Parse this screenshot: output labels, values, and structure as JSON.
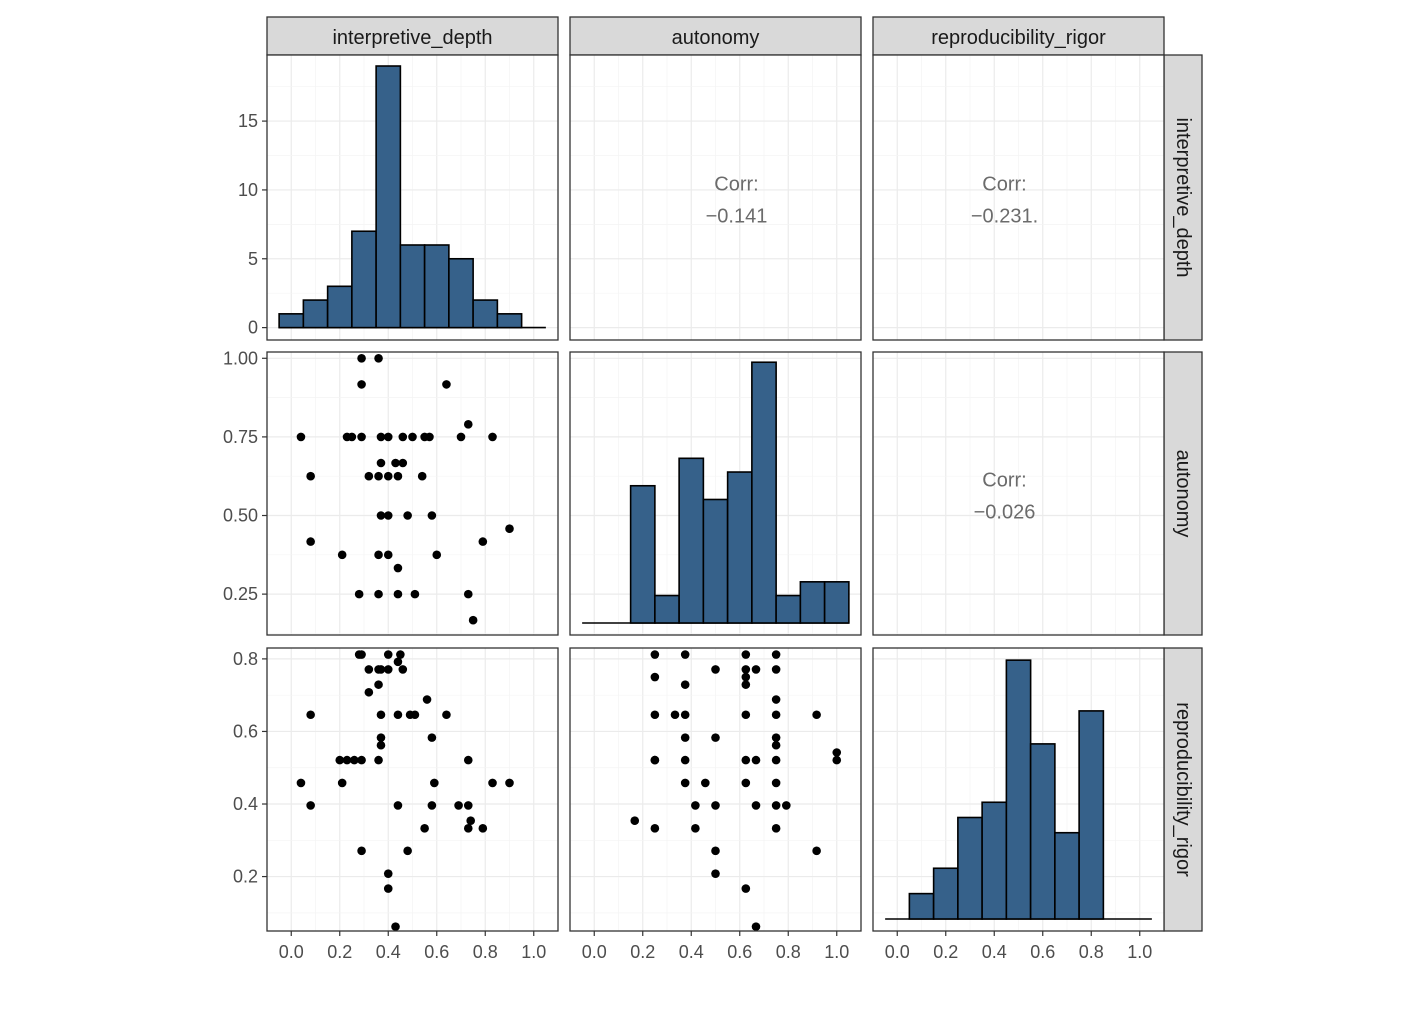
{
  "chart_data": {
    "type": "scatter_matrix",
    "variables": [
      "interpretive_depth",
      "autonomy",
      "reproducibility_rigor"
    ],
    "ranges": {
      "interpretive_depth": [
        -0.05,
        1.05
      ],
      "autonomy": [
        0.12,
        1.02
      ],
      "reproducibility_rigor": [
        0.05,
        0.83
      ]
    },
    "x_breaks": [
      0.0,
      0.2,
      0.4,
      0.6,
      0.8,
      1.0
    ],
    "x_break_labels": [
      "0.0",
      "0.2",
      "0.4",
      "0.6",
      "0.8",
      "1.0"
    ],
    "y_axis": {
      "row0": {
        "range": [
          -0.9,
          19.8
        ],
        "breaks": [
          0,
          5,
          10,
          15
        ],
        "labels": [
          "0",
          "5",
          "10",
          "15"
        ]
      },
      "row1": {
        "breaks": [
          0.25,
          0.5,
          0.75,
          1.0
        ],
        "labels": [
          "0.25",
          "0.50",
          "0.75",
          "1.00"
        ]
      },
      "row2": {
        "breaks": [
          0.2,
          0.4,
          0.6,
          0.8
        ],
        "labels": [
          "0.2",
          "0.4",
          "0.6",
          "0.8"
        ]
      }
    },
    "histograms": {
      "interpretive_depth": {
        "bin_start": -0.05,
        "bin_width": 0.1,
        "counts": [
          1,
          2,
          3,
          7,
          19,
          6,
          6,
          5,
          2,
          1,
          0
        ],
        "max": 19.8
      },
      "autonomy": {
        "bin_start": -0.05,
        "bin_width": 0.1,
        "counts": [
          0,
          0,
          5,
          1,
          6,
          4.5,
          5.5,
          9.5,
          1,
          1.5,
          1.5
        ],
        "max": 9.8
      },
      "reproducibility_rigor": {
        "bin_start": -0.05,
        "bin_width": 0.1,
        "counts": [
          0,
          1,
          2,
          4,
          4.6,
          10.2,
          6.9,
          3.4,
          8.2,
          0,
          0
        ],
        "max": 10.6
      }
    },
    "correlations": [
      {
        "row": 0,
        "col": 1,
        "label": "Corr:",
        "value": "−0.141"
      },
      {
        "row": 0,
        "col": 2,
        "label": "Corr:",
        "value": "−0.231."
      },
      {
        "row": 1,
        "col": 2,
        "label": "Corr:",
        "value": "−0.026"
      }
    ],
    "scatter": {
      "autonomy_vs_interpretive_depth": [
        [
          0.29,
          1.0
        ],
        [
          0.36,
          1.0
        ],
        [
          0.29,
          0.917
        ],
        [
          0.64,
          0.917
        ],
        [
          0.04,
          0.75
        ],
        [
          0.23,
          0.75
        ],
        [
          0.25,
          0.75
        ],
        [
          0.29,
          0.75
        ],
        [
          0.37,
          0.75
        ],
        [
          0.4,
          0.75
        ],
        [
          0.46,
          0.75
        ],
        [
          0.5,
          0.75
        ],
        [
          0.55,
          0.75
        ],
        [
          0.57,
          0.75
        ],
        [
          0.7,
          0.75
        ],
        [
          0.83,
          0.75
        ],
        [
          0.73,
          0.79
        ],
        [
          0.08,
          0.625
        ],
        [
          0.37,
          0.667
        ],
        [
          0.43,
          0.667
        ],
        [
          0.46,
          0.667
        ],
        [
          0.32,
          0.625
        ],
        [
          0.36,
          0.625
        ],
        [
          0.4,
          0.625
        ],
        [
          0.44,
          0.625
        ],
        [
          0.54,
          0.625
        ],
        [
          0.37,
          0.5
        ],
        [
          0.4,
          0.5
        ],
        [
          0.48,
          0.5
        ],
        [
          0.58,
          0.5
        ],
        [
          0.9,
          0.458
        ],
        [
          0.08,
          0.417
        ],
        [
          0.79,
          0.417
        ],
        [
          0.21,
          0.375
        ],
        [
          0.36,
          0.375
        ],
        [
          0.4,
          0.375
        ],
        [
          0.6,
          0.375
        ],
        [
          0.44,
          0.333
        ],
        [
          0.28,
          0.25
        ],
        [
          0.36,
          0.25
        ],
        [
          0.44,
          0.25
        ],
        [
          0.51,
          0.25
        ],
        [
          0.73,
          0.25
        ],
        [
          0.75,
          0.167
        ]
      ],
      "reproducibility_rigor_vs_interpretive_depth": [
        [
          0.28,
          0.812
        ],
        [
          0.29,
          0.812
        ],
        [
          0.4,
          0.812
        ],
        [
          0.45,
          0.812
        ],
        [
          0.44,
          0.792
        ],
        [
          0.32,
          0.771
        ],
        [
          0.36,
          0.771
        ],
        [
          0.37,
          0.771
        ],
        [
          0.4,
          0.771
        ],
        [
          0.46,
          0.771
        ],
        [
          0.36,
          0.729
        ],
        [
          0.32,
          0.708
        ],
        [
          0.56,
          0.688
        ],
        [
          0.08,
          0.646
        ],
        [
          0.37,
          0.646
        ],
        [
          0.44,
          0.646
        ],
        [
          0.49,
          0.646
        ],
        [
          0.51,
          0.646
        ],
        [
          0.64,
          0.646
        ],
        [
          0.37,
          0.583
        ],
        [
          0.58,
          0.583
        ],
        [
          0.37,
          0.562
        ],
        [
          0.2,
          0.521
        ],
        [
          0.23,
          0.521
        ],
        [
          0.26,
          0.521
        ],
        [
          0.29,
          0.521
        ],
        [
          0.36,
          0.521
        ],
        [
          0.73,
          0.521
        ],
        [
          0.04,
          0.458
        ],
        [
          0.21,
          0.458
        ],
        [
          0.59,
          0.458
        ],
        [
          0.83,
          0.458
        ],
        [
          0.9,
          0.458
        ],
        [
          0.44,
          0.396
        ],
        [
          0.58,
          0.396
        ],
        [
          0.69,
          0.396
        ],
        [
          0.73,
          0.396
        ],
        [
          0.74,
          0.354
        ],
        [
          0.08,
          0.396
        ],
        [
          0.73,
          0.333
        ],
        [
          0.55,
          0.333
        ],
        [
          0.79,
          0.333
        ],
        [
          0.29,
          0.271
        ],
        [
          0.48,
          0.271
        ],
        [
          0.4,
          0.208
        ],
        [
          0.4,
          0.167
        ],
        [
          0.43,
          0.062
        ]
      ],
      "reproducibility_rigor_vs_autonomy": [
        [
          0.25,
          0.812
        ],
        [
          0.375,
          0.812
        ],
        [
          0.625,
          0.812
        ],
        [
          0.75,
          0.812
        ],
        [
          0.625,
          0.771
        ],
        [
          0.667,
          0.771
        ],
        [
          0.25,
          0.75
        ],
        [
          0.5,
          0.771
        ],
        [
          0.625,
          0.75
        ],
        [
          0.75,
          0.771
        ],
        [
          0.375,
          0.729
        ],
        [
          0.625,
          0.729
        ],
        [
          0.75,
          0.688
        ],
        [
          0.25,
          0.646
        ],
        [
          0.333,
          0.646
        ],
        [
          0.375,
          0.646
        ],
        [
          0.625,
          0.646
        ],
        [
          0.75,
          0.646
        ],
        [
          0.917,
          0.646
        ],
        [
          0.375,
          0.583
        ],
        [
          0.5,
          0.583
        ],
        [
          0.75,
          0.583
        ],
        [
          0.75,
          0.562
        ],
        [
          0.25,
          0.521
        ],
        [
          0.25,
          0.521
        ],
        [
          0.375,
          0.521
        ],
        [
          0.625,
          0.521
        ],
        [
          0.667,
          0.521
        ],
        [
          0.75,
          0.521
        ],
        [
          1.0,
          0.542
        ],
        [
          1.0,
          0.521
        ],
        [
          0.375,
          0.458
        ],
        [
          0.458,
          0.458
        ],
        [
          0.625,
          0.458
        ],
        [
          0.75,
          0.458
        ],
        [
          0.417,
          0.396
        ],
        [
          0.5,
          0.396
        ],
        [
          0.667,
          0.396
        ],
        [
          0.75,
          0.396
        ],
        [
          0.792,
          0.396
        ],
        [
          0.167,
          0.354
        ],
        [
          0.25,
          0.333
        ],
        [
          0.417,
          0.333
        ],
        [
          0.75,
          0.333
        ],
        [
          0.5,
          0.271
        ],
        [
          0.917,
          0.271
        ],
        [
          0.5,
          0.208
        ],
        [
          0.625,
          0.167
        ],
        [
          0.667,
          0.062
        ]
      ]
    }
  }
}
